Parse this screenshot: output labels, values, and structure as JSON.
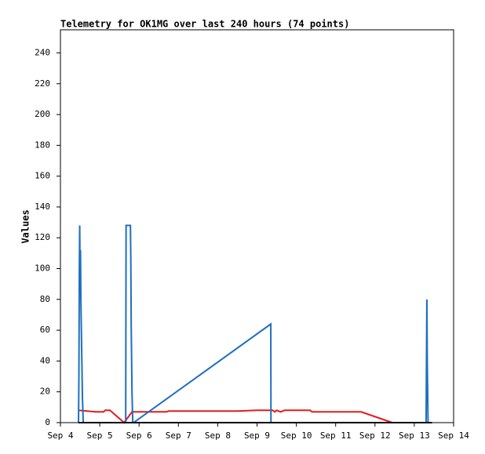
{
  "chart_data": {
    "type": "line",
    "title": "Telemetry for OK1MG over last 240 hours (74 points)",
    "y_label": "Values",
    "xlim": [
      4,
      14
    ],
    "xticks": [
      {
        "value": 4,
        "label": "Sep 4"
      },
      {
        "value": 5,
        "label": "Sep 5"
      },
      {
        "value": 6,
        "label": "Sep 6"
      },
      {
        "value": 7,
        "label": "Sep 7"
      },
      {
        "value": 8,
        "label": "Sep 8"
      },
      {
        "value": 9,
        "label": "Sep 9"
      },
      {
        "value": 10,
        "label": "Sep 10"
      },
      {
        "value": 11,
        "label": "Sep 11"
      },
      {
        "value": 12,
        "label": "Sep 12"
      },
      {
        "value": 13,
        "label": "Sep 13"
      },
      {
        "value": 14,
        "label": "Sep 14"
      }
    ],
    "ylim": [
      0,
      255
    ],
    "yticks": [
      0,
      20,
      40,
      60,
      80,
      100,
      120,
      140,
      160,
      180,
      200,
      220,
      240
    ],
    "grid": false,
    "series": [
      {
        "color": "#e41a1c",
        "x": [
          4.46,
          4.9,
          5.1,
          5.14,
          5.26,
          5.62,
          5.82,
          6.7,
          6.75,
          8.5,
          9.0,
          9.4,
          9.45,
          9.5,
          9.6,
          9.7,
          10.35,
          10.4,
          11.65,
          12.44
        ],
        "values": [
          8,
          7,
          7,
          8,
          8,
          0,
          7,
          7,
          7.5,
          7.5,
          8,
          8,
          7,
          8,
          7,
          8,
          8,
          7,
          7,
          0
        ]
      },
      {
        "color": "#1f6fc0",
        "x": [
          4.46,
          4.47,
          4.48,
          4.49,
          4.5,
          4.51,
          4.52,
          4.54,
          4.56,
          4.58,
          5.66,
          5.665,
          5.67,
          5.78,
          5.79,
          5.8,
          5.82,
          5.84,
          5.86,
          9.35,
          9.355,
          13.3,
          13.31,
          13.32,
          13.33,
          13.35,
          13.42
        ],
        "values": [
          0,
          32,
          96,
          128,
          96,
          112,
          80,
          48,
          16,
          0,
          0,
          64,
          128,
          128,
          106,
          64,
          20,
          0,
          0,
          64,
          0,
          0,
          40,
          80,
          40,
          0,
          0
        ]
      },
      {
        "color": "#000000",
        "x": [
          4.46,
          13.45
        ],
        "values": [
          0,
          0
        ]
      }
    ]
  }
}
